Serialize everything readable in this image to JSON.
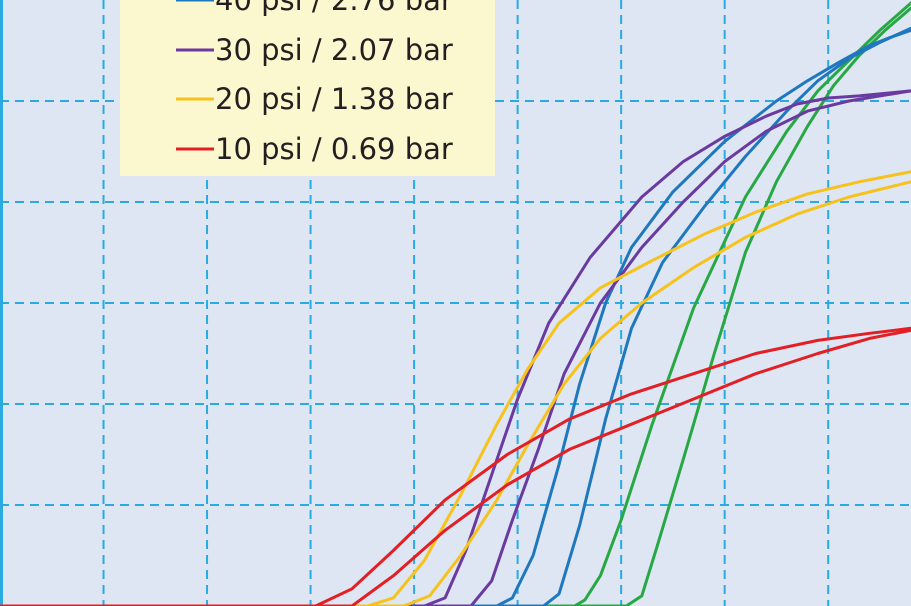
{
  "chart_data": {
    "type": "line",
    "title": "",
    "xlabel": "",
    "ylabel": "",
    "xlim": [
      0,
      8.8
    ],
    "ylim": [
      0,
      6
    ],
    "grid": true,
    "legend_placement": "top-left",
    "colors": {
      "background": "#dde6f2",
      "grid": "#29abe2",
      "legend_bg": "#fbf7cf",
      "green": "#27a845",
      "blue": "#1f78bd",
      "purple": "#6b3aa0",
      "yellow": "#f7c21b",
      "red": "#e31e24"
    },
    "legend": [
      {
        "label": "40 psi / 2.76 bar",
        "color": "#1f78bd"
      },
      {
        "label": "30 psi / 2.07 bar",
        "color": "#6b3aa0"
      },
      {
        "label": "20 psi / 1.38 bar",
        "color": "#f7c21b"
      },
      {
        "label": "10 psi / 0.69 bar",
        "color": "#e31e24"
      }
    ],
    "series": [
      {
        "color": "#27a845",
        "x": [
          0,
          5.55,
          5.65,
          5.8,
          6.0,
          6.3,
          6.7,
          7.2,
          7.6,
          7.9,
          8.2,
          8.5,
          8.8
        ],
        "y": [
          0,
          0,
          0.06,
          0.3,
          0.85,
          1.8,
          2.95,
          4.05,
          4.7,
          5.1,
          5.4,
          5.7,
          5.97
        ]
      },
      {
        "color": "#27a845",
        "x": [
          0,
          6.05,
          6.2,
          6.35,
          6.6,
          6.9,
          7.2,
          7.5,
          7.8,
          8.05,
          8.3,
          8.55,
          8.8
        ],
        "y": [
          0,
          0,
          0.1,
          0.6,
          1.45,
          2.5,
          3.5,
          4.2,
          4.75,
          5.15,
          5.45,
          5.7,
          5.92
        ]
      },
      {
        "color": "#1f78bd",
        "x": [
          0,
          4.8,
          4.95,
          5.15,
          5.4,
          5.6,
          5.85,
          6.1,
          6.5,
          7.0,
          7.5,
          7.8,
          8.1,
          8.4,
          8.6,
          8.8
        ],
        "y": [
          0,
          0,
          0.08,
          0.5,
          1.4,
          2.2,
          3.0,
          3.55,
          4.1,
          4.6,
          5.0,
          5.2,
          5.38,
          5.55,
          5.63,
          5.7
        ]
      },
      {
        "color": "#1f78bd",
        "x": [
          0,
          5.25,
          5.4,
          5.6,
          5.85,
          6.1,
          6.4,
          6.8,
          7.2,
          7.6,
          7.9,
          8.2,
          8.5,
          8.8
        ],
        "y": [
          0,
          0,
          0.12,
          0.8,
          1.85,
          2.75,
          3.4,
          3.95,
          4.45,
          4.9,
          5.2,
          5.42,
          5.58,
          5.72
        ]
      },
      {
        "color": "#6b3aa0",
        "x": [
          0,
          4.1,
          4.3,
          4.5,
          4.75,
          5.0,
          5.3,
          5.7,
          6.2,
          6.6,
          7.0,
          7.4,
          7.7,
          8.0,
          8.3,
          8.8
        ],
        "y": [
          0,
          0,
          0.08,
          0.55,
          1.3,
          2.05,
          2.8,
          3.45,
          4.05,
          4.4,
          4.65,
          4.85,
          4.97,
          5.03,
          5.05,
          5.1
        ]
      },
      {
        "color": "#6b3aa0",
        "x": [
          0,
          4.55,
          4.75,
          4.95,
          5.2,
          5.45,
          5.8,
          6.2,
          6.6,
          7.0,
          7.4,
          7.8,
          8.2,
          8.5,
          8.8
        ],
        "y": [
          0,
          0,
          0.25,
          0.85,
          1.55,
          2.3,
          3.0,
          3.55,
          4.0,
          4.4,
          4.7,
          4.9,
          5.0,
          5.05,
          5.1
        ]
      },
      {
        "color": "#f7c21b",
        "x": [
          0,
          3.55,
          3.8,
          4.1,
          4.45,
          4.8,
          5.1,
          5.4,
          5.8,
          6.3,
          6.8,
          7.3,
          7.8,
          8.3,
          8.8
        ],
        "y": [
          0,
          0,
          0.08,
          0.45,
          1.1,
          1.8,
          2.35,
          2.8,
          3.15,
          3.42,
          3.68,
          3.9,
          4.08,
          4.2,
          4.3
        ]
      },
      {
        "color": "#f7c21b",
        "x": [
          0,
          3.9,
          4.15,
          4.45,
          4.8,
          5.1,
          5.45,
          5.8,
          6.2,
          6.7,
          7.2,
          7.7,
          8.2,
          8.8
        ],
        "y": [
          0,
          0,
          0.1,
          0.5,
          1.05,
          1.6,
          2.2,
          2.65,
          3.0,
          3.35,
          3.65,
          3.88,
          4.05,
          4.2
        ]
      },
      {
        "color": "#e31e24",
        "x": [
          0,
          3.05,
          3.4,
          3.8,
          4.3,
          4.9,
          5.5,
          6.1,
          6.7,
          7.3,
          7.9,
          8.4,
          8.8
        ],
        "y": [
          0,
          0,
          0.17,
          0.55,
          1.05,
          1.5,
          1.85,
          2.1,
          2.3,
          2.5,
          2.63,
          2.7,
          2.75
        ]
      },
      {
        "color": "#e31e24",
        "x": [
          0,
          3.4,
          3.8,
          4.3,
          4.9,
          5.5,
          6.1,
          6.7,
          7.3,
          7.9,
          8.4,
          8.8
        ],
        "y": [
          0,
          0,
          0.3,
          0.75,
          1.2,
          1.55,
          1.8,
          2.05,
          2.3,
          2.5,
          2.65,
          2.73
        ]
      }
    ]
  }
}
